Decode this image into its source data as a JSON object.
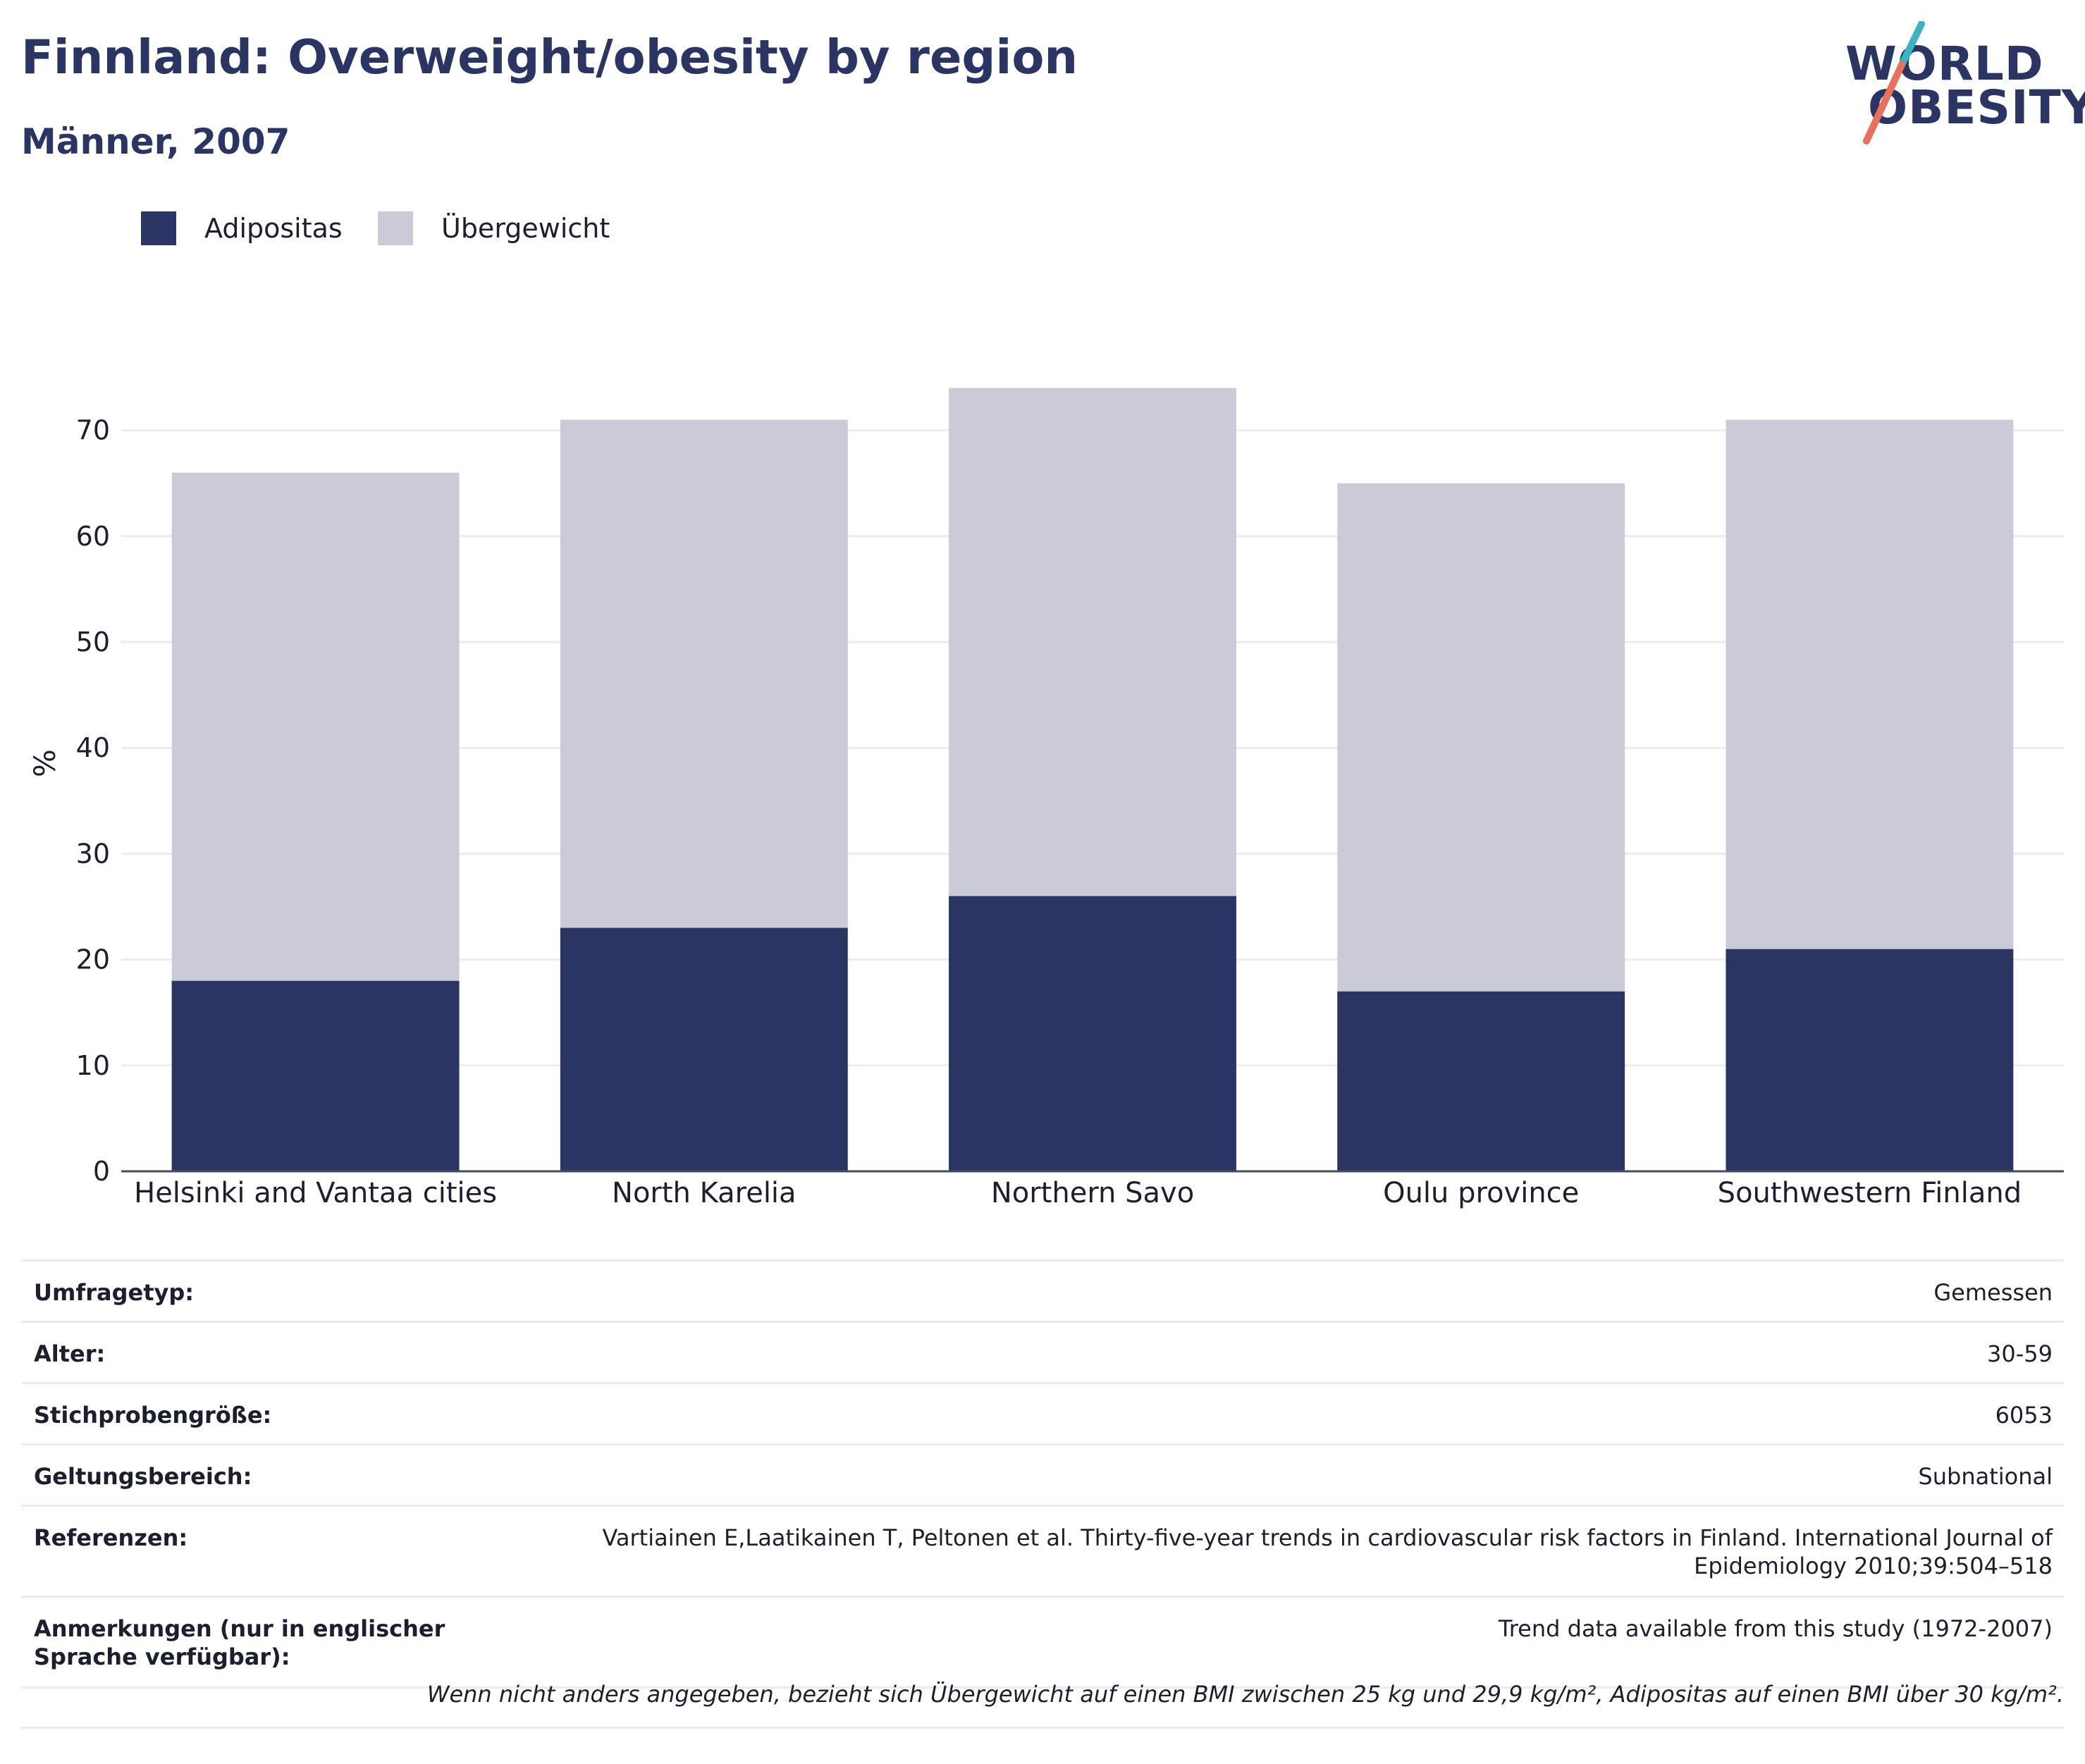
{
  "header": {
    "title": "Finnland: Overweight/obesity by region",
    "subtitle": "Männer, 2007"
  },
  "logo": {
    "line1": "WORLD",
    "line2": "OBESITY",
    "colors": {
      "text": "#2a3564",
      "slash_top": "#3bb3c3",
      "slash_bottom": "#e8705c"
    }
  },
  "legend": [
    {
      "label": "Adipositas",
      "color": "#2a3564"
    },
    {
      "label": "Übergewicht",
      "color": "#cacbd7"
    }
  ],
  "chart_data": {
    "type": "bar",
    "stacked": true,
    "categories": [
      "Helsinki and Vantaa cities",
      "North Karelia",
      "Northern Savo",
      "Oulu province",
      "Southwestern Finland"
    ],
    "series": [
      {
        "name": "Adipositas",
        "values": [
          18,
          23,
          26,
          17,
          21
        ],
        "color": "#2a3564"
      },
      {
        "name": "Übergewicht",
        "values": [
          48,
          48,
          48,
          48,
          50
        ],
        "color": "#cacbd7"
      }
    ],
    "ylabel": "%",
    "ylim": [
      0,
      75
    ],
    "yticks": [
      0,
      10,
      20,
      30,
      40,
      50,
      60,
      70
    ],
    "grid": true,
    "legend_position": "top-left"
  },
  "info": {
    "rows": [
      {
        "key": "Umfragetyp:",
        "value": "Gemessen"
      },
      {
        "key": "Alter:",
        "value": "30-59"
      },
      {
        "key": "Stichprobengröße:",
        "value": "6053"
      },
      {
        "key": "Geltungsbereich:",
        "value": "Subnational"
      },
      {
        "key": "Referenzen:",
        "value": "Vartiainen E,Laatikainen T, Peltonen et al. Thirty-five-year trends in cardiovascular risk factors in Finland. International Journal of Epidemiology 2010;39:504–518"
      },
      {
        "key": "Anmerkungen (nur in englischer Sprache verfügbar):",
        "value": "Trend data available from this study (1972-2007)"
      }
    ],
    "footnote": "Wenn nicht anders angegeben, bezieht sich Übergewicht auf einen BMI zwischen 25 kg und 29,9 kg/m², Adipositas auf einen BMI über 30 kg/m²."
  }
}
